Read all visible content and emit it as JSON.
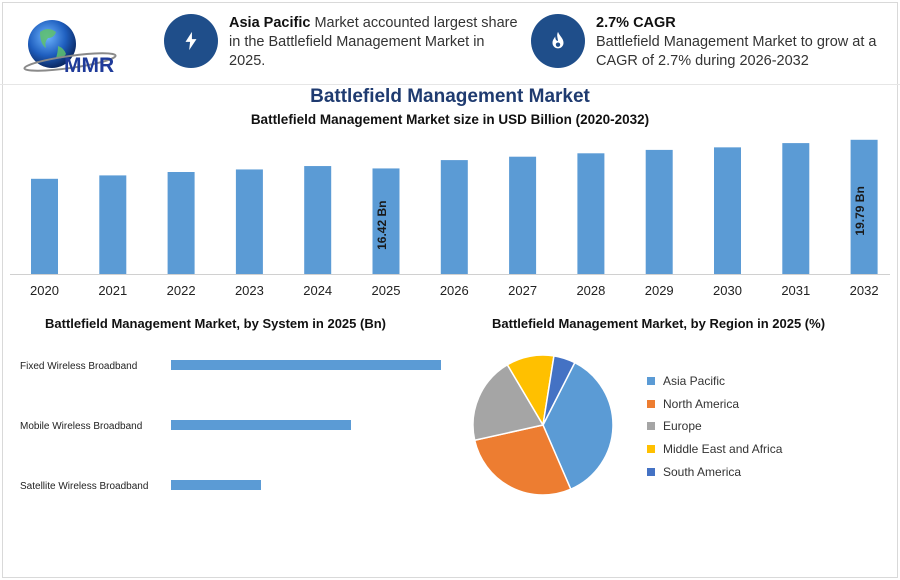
{
  "header": {
    "logo_text": "MMR",
    "box1": {
      "bold": "Asia Pacific",
      "text": " Market accounted largest share in the Battlefield Management Market in 2025.",
      "icon": "lightning-icon"
    },
    "box2": {
      "bold": "2.7% CAGR",
      "text": "Battlefield Management Market to grow at a CAGR of 2.7% during 2026-2032",
      "icon": "flame-icon"
    }
  },
  "colors": {
    "bar": "#5b9bd5",
    "accent": "#1f4e8a"
  },
  "chart_data": [
    {
      "type": "bar",
      "title": "Battlefield Management Market",
      "subtitle": "Battlefield Management Market size in USD Billion (2020-2032)",
      "categories": [
        "2020",
        "2021",
        "2022",
        "2023",
        "2024",
        "2025",
        "2026",
        "2027",
        "2028",
        "2029",
        "2030",
        "2031",
        "2032"
      ],
      "values": [
        15.2,
        15.6,
        16.0,
        16.3,
        16.7,
        16.42,
        17.4,
        17.8,
        18.2,
        18.6,
        18.9,
        19.4,
        19.79
      ],
      "data_labels": [
        {
          "category": "2025",
          "text": "16.42 Bn"
        },
        {
          "category": "2032",
          "text": "19.79 Bn"
        }
      ],
      "ylim": [
        0,
        20
      ],
      "grid": false
    },
    {
      "type": "bar",
      "orientation": "horizontal",
      "title": "Battlefield Management Market, by System in 2025 (Bn)",
      "categories": [
        "Fixed Wireless Broadband",
        "Mobile Wireless Broadband",
        "Satellite Wireless Broadband"
      ],
      "values": [
        7.5,
        5.0,
        2.5
      ],
      "xlim": [
        0,
        8
      ],
      "grid": false
    },
    {
      "type": "pie",
      "title": "Battlefield Management Market, by Region in 2025 (%)",
      "categories": [
        "Asia Pacific",
        "North America",
        "Europe",
        "Middle East and Africa",
        "South America"
      ],
      "values": [
        36,
        28,
        20,
        11,
        5
      ],
      "colors": [
        "#5b9bd5",
        "#ed7d31",
        "#a5a5a5",
        "#ffc000",
        "#4472c4"
      ],
      "legend": "right"
    }
  ]
}
